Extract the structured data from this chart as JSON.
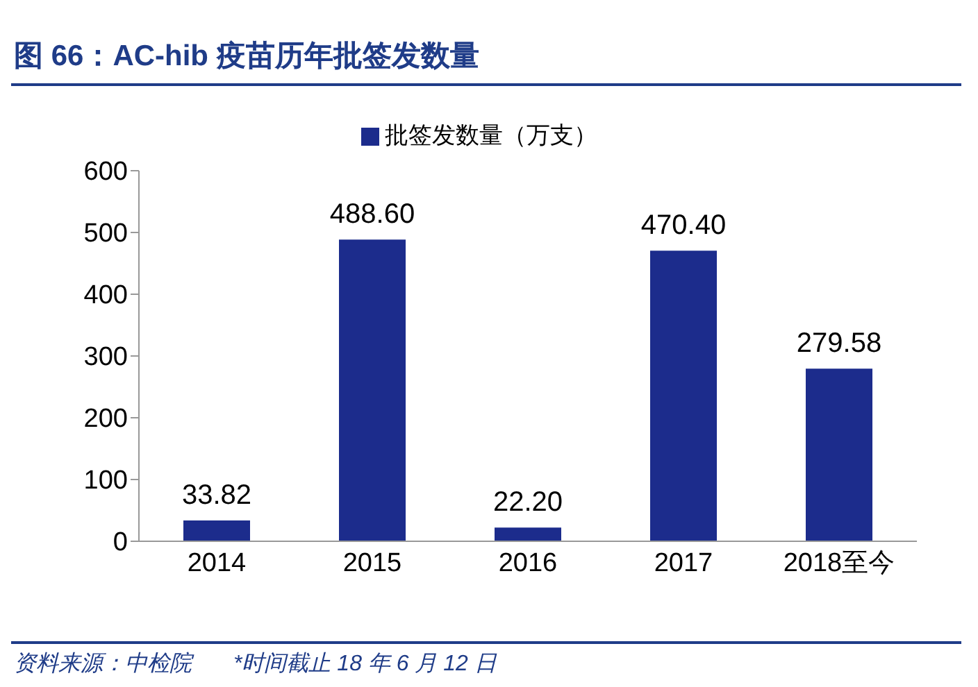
{
  "chart_data": {
    "type": "bar",
    "title": "图 66：AC-hib 疫苗历年批签发数量",
    "categories": [
      "2014",
      "2015",
      "2016",
      "2017",
      "2018至今"
    ],
    "series": [
      {
        "name": "批签发数量（万支）",
        "color": "#1c2c8c",
        "values": [
          33.82,
          488.6,
          22.2,
          470.4,
          279.58
        ],
        "value_labels": [
          "33.82",
          "488.60",
          "22.20",
          "470.40",
          "279.58"
        ]
      }
    ],
    "ylim": [
      0,
      600
    ],
    "yticks": [
      0,
      100,
      200,
      300,
      400,
      500,
      600
    ],
    "grid": false,
    "legend": "top",
    "annotations": [
      "资料来源：中检院",
      "*时间截止 18 年 6 月 12 日"
    ]
  }
}
